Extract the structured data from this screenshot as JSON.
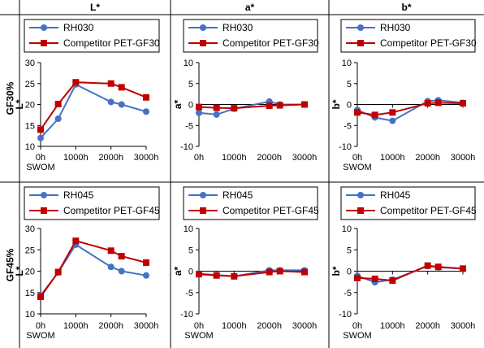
{
  "column_headers": [
    "L*",
    "a*",
    "b*"
  ],
  "row_headers": [
    "GF30%",
    "GF45%"
  ],
  "colors": {
    "series_a": "#4472C4",
    "series_b": "#C00000",
    "grid_line": "#000000",
    "axis": "#000000"
  },
  "chart_data": [
    {
      "type": "line",
      "row": 0,
      "col": 0,
      "ylabel": "L*",
      "ylim": [
        10,
        30
      ],
      "yticks": [
        10,
        15,
        20,
        25,
        30
      ],
      "xlim": [
        0,
        3000
      ],
      "xticks": [
        "0h",
        "1000h",
        "2000h",
        "3000h"
      ],
      "xlabel_extra": "SWOM",
      "series": [
        {
          "name": "RH030",
          "marker": "circle",
          "x": [
            0,
            500,
            1000,
            2000,
            2300,
            3000
          ],
          "y": [
            12,
            16.6,
            24.8,
            20.6,
            20,
            18.3
          ]
        },
        {
          "name": "Competitor PET-GF30",
          "marker": "square",
          "x": [
            0,
            500,
            1000,
            2000,
            2300,
            3000
          ],
          "y": [
            14,
            20.1,
            25.3,
            25,
            24.1,
            21.7
          ]
        }
      ]
    },
    {
      "type": "line",
      "row": 0,
      "col": 1,
      "ylabel": "a*",
      "ylim": [
        -10,
        10
      ],
      "yticks": [
        -10,
        -5,
        0,
        5,
        10
      ],
      "xlim": [
        0,
        3000
      ],
      "xticks": [
        "0h",
        "1000h",
        "2000h",
        "3000h"
      ],
      "xlabel_extra": "",
      "series": [
        {
          "name": "RH030",
          "marker": "circle",
          "x": [
            0,
            500,
            1000,
            2000,
            2300,
            3000
          ],
          "y": [
            -2,
            -2.4,
            -1,
            0.7,
            0,
            0
          ]
        },
        {
          "name": "Competitor PET-GF30",
          "marker": "square",
          "x": [
            0,
            500,
            1000,
            2000,
            2300,
            3000
          ],
          "y": [
            -0.6,
            -0.8,
            -0.9,
            -0.3,
            -0.2,
            0
          ]
        }
      ]
    },
    {
      "type": "line",
      "row": 0,
      "col": 2,
      "ylabel": "b*",
      "ylim": [
        -10,
        10
      ],
      "yticks": [
        -10,
        -5,
        0,
        5,
        10
      ],
      "xlim": [
        0,
        3000
      ],
      "xticks": [
        "0h",
        "1000h",
        "2000h",
        "3000h"
      ],
      "xlabel_extra": "SWOM",
      "series": [
        {
          "name": "RH030",
          "marker": "circle",
          "x": [
            0,
            500,
            1000,
            2000,
            2300,
            3000
          ],
          "y": [
            -1.3,
            -3.1,
            -3.9,
            0.8,
            1,
            0.4
          ]
        },
        {
          "name": "Competitor PET-GF30",
          "marker": "square",
          "x": [
            0,
            500,
            1000,
            2000,
            2300,
            3000
          ],
          "y": [
            -1.9,
            -2.5,
            -1.9,
            0.3,
            0.4,
            0.3
          ]
        }
      ]
    },
    {
      "type": "line",
      "row": 1,
      "col": 0,
      "ylabel": "L*",
      "ylim": [
        10,
        30
      ],
      "yticks": [
        10,
        15,
        20,
        25,
        30
      ],
      "xlim": [
        0,
        3000
      ],
      "xticks": [
        "0h",
        "1000h",
        "2000h",
        "3000h"
      ],
      "xlabel_extra": "SWOM",
      "series": [
        {
          "name": "RH045",
          "marker": "circle",
          "x": [
            0,
            500,
            1000,
            2000,
            2300,
            3000
          ],
          "y": [
            14.3,
            19.7,
            26.2,
            21,
            20,
            19
          ]
        },
        {
          "name": "Competitor PET-GF45",
          "marker": "square",
          "x": [
            0,
            500,
            1000,
            2000,
            2300,
            3000
          ],
          "y": [
            14,
            19.8,
            27.1,
            24.8,
            23.5,
            22
          ]
        }
      ]
    },
    {
      "type": "line",
      "row": 1,
      "col": 1,
      "ylabel": "a*",
      "ylim": [
        -10,
        10
      ],
      "yticks": [
        -10,
        -5,
        0,
        5,
        10
      ],
      "xlim": [
        0,
        3000
      ],
      "xticks": [
        "0h",
        "1000h",
        "2000h",
        "3000h"
      ],
      "xlabel_extra": "SWOM",
      "series": [
        {
          "name": "RH045",
          "marker": "circle",
          "x": [
            0,
            500,
            1000,
            2000,
            2300,
            3000
          ],
          "y": [
            -0.6,
            -0.9,
            -1.2,
            0.2,
            0.2,
            0.2
          ]
        },
        {
          "name": "Competitor PET-GF45",
          "marker": "square",
          "x": [
            0,
            500,
            1000,
            2000,
            2300,
            3000
          ],
          "y": [
            -0.7,
            -1,
            -1.2,
            -0.2,
            0,
            -0.2
          ]
        }
      ]
    },
    {
      "type": "line",
      "row": 1,
      "col": 2,
      "ylabel": "b*",
      "ylim": [
        -10,
        10
      ],
      "yticks": [
        -10,
        -5,
        0,
        5,
        10
      ],
      "xlim": [
        0,
        3000
      ],
      "xticks": [
        "0h",
        "1000h",
        "2000h",
        "3000h"
      ],
      "xlabel_extra": "SWOM",
      "series": [
        {
          "name": "RH045",
          "marker": "circle",
          "x": [
            0,
            500,
            1000,
            2000,
            2300,
            3000
          ],
          "y": [
            -1.1,
            -2.6,
            -2,
            1.2,
            0.9,
            0.6
          ]
        },
        {
          "name": "Competitor PET-GF45",
          "marker": "square",
          "x": [
            0,
            500,
            1000,
            2000,
            2300,
            3000
          ],
          "y": [
            -1.6,
            -1.8,
            -2.2,
            1.3,
            1,
            0.6
          ]
        }
      ]
    }
  ]
}
